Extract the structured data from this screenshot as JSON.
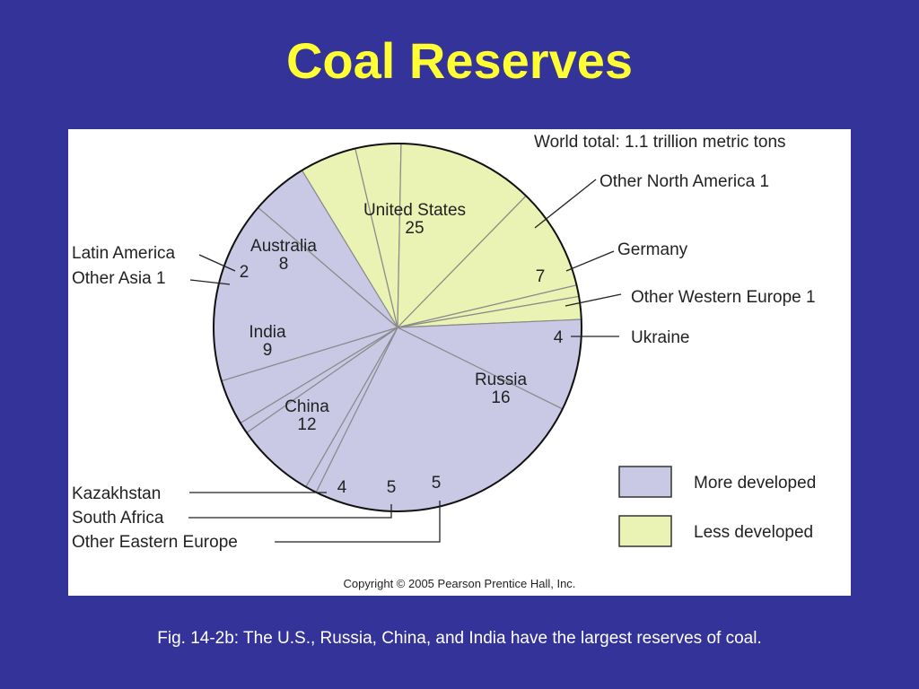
{
  "slide": {
    "title": "Coal Reserves",
    "caption": "Fig. 14-2b: The U.S., Russia, China, and India have the largest reserves of coal."
  },
  "chart_data": {
    "type": "pie",
    "subtitle": "World total: 1.1 trillion metric tons",
    "copyright": "Copyright © 2005 Pearson Prentice Hall, Inc.",
    "legend_position": "bottom-right",
    "legend": [
      {
        "group": "more",
        "label": "More developed"
      },
      {
        "group": "less",
        "label": "Less developed"
      }
    ],
    "colors": {
      "more": "#c9c9e6",
      "less": "#eaf2b4",
      "outline": "#111111",
      "divider": "#8a8a8a",
      "leader": "#222222"
    },
    "slices": [
      {
        "key": "us",
        "name": "United States",
        "value": 25,
        "value_label": "25",
        "group": "more"
      },
      {
        "key": "other-na",
        "name": "Other North America 1",
        "value": 1,
        "value_label": "",
        "group": "more"
      },
      {
        "key": "germany",
        "name": "Germany",
        "value": 7,
        "value_label": "7",
        "group": "more"
      },
      {
        "key": "other-we",
        "name": "Other Western Europe 1",
        "value": 1,
        "value_label": "",
        "group": "more"
      },
      {
        "key": "ukraine",
        "name": "Ukraine",
        "value": 4,
        "value_label": "4",
        "group": "more"
      },
      {
        "key": "russia",
        "name": "Russia",
        "value": 16,
        "value_label": "16",
        "group": "more"
      },
      {
        "key": "other-ee",
        "name": "Other Eastern Europe",
        "value": 5,
        "value_label": "5",
        "group": "more"
      },
      {
        "key": "south-africa",
        "name": "South Africa",
        "value": 5,
        "value_label": "5",
        "group": "less"
      },
      {
        "key": "kazakhstan",
        "name": "Kazakhstan",
        "value": 4,
        "value_label": "4",
        "group": "less"
      },
      {
        "key": "china",
        "name": "China",
        "value": 12,
        "value_label": "12",
        "group": "less"
      },
      {
        "key": "india",
        "name": "India",
        "value": 9,
        "value_label": "9",
        "group": "less"
      },
      {
        "key": "other-asia",
        "name": "Other Asia 1",
        "value": 1,
        "value_label": "",
        "group": "less"
      },
      {
        "key": "latin-america",
        "name": "Latin America",
        "value": 2,
        "value_label": "2",
        "group": "less"
      },
      {
        "key": "australia",
        "name": "Australia",
        "value": 8,
        "value_label": "8",
        "group": "more"
      }
    ]
  }
}
